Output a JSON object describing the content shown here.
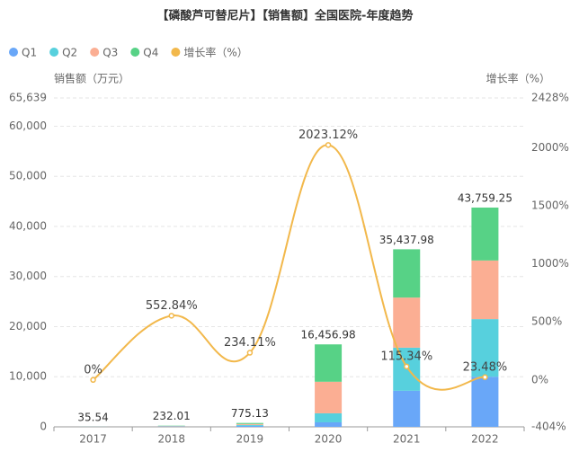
{
  "chart_data": {
    "type": "bar",
    "title": "【磷酸芦可替尼片】【销售额】全国医院-年度趋势",
    "y_label": "销售额（万元）",
    "y2_label": "增长率（%）",
    "categories": [
      "2017",
      "2018",
      "2019",
      "2020",
      "2021",
      "2022"
    ],
    "stacked": true,
    "series": [
      {
        "name": "Q1",
        "color": "#69a7f8",
        "values": [
          10,
          60,
          200,
          900,
          7200,
          10000
        ]
      },
      {
        "name": "Q2",
        "color": "#57d0dd",
        "values": [
          8,
          55,
          180,
          1800,
          8600,
          11500
        ]
      },
      {
        "name": "Q3",
        "color": "#fbae93",
        "values": [
          9,
          60,
          200,
          6300,
          10000,
          11700
        ]
      },
      {
        "name": "Q4",
        "color": "#57d286",
        "values": [
          8.54,
          57.01,
          195.13,
          7456.98,
          9637.98,
          10559.25
        ]
      },
      {
        "name": "增长率（%）",
        "type": "line",
        "axis": "y2",
        "color": "#f2b84b",
        "smooth": true,
        "values": [
          0,
          552.84,
          234.11,
          2023.12,
          115.34,
          23.48
        ],
        "value_labels": [
          "0%",
          "552.84%",
          "234.11%",
          "2023.12%",
          "115.34%",
          "23.48%"
        ]
      }
    ],
    "total_labels": [
      "35.54",
      "232.01",
      "775.13",
      "16,456.98",
      "35,437.98",
      "43,759.25"
    ],
    "ylim": [
      0,
      65639
    ],
    "yticks": [
      0,
      {
        "value": 10000,
        "label": "10,000"
      },
      {
        "value": 20000,
        "label": "20,000"
      },
      {
        "value": 30000,
        "label": "30,000"
      },
      {
        "value": 40000,
        "label": "40,000"
      },
      {
        "value": 50000,
        "label": "50,000"
      },
      {
        "value": 60000,
        "label": "60,000"
      },
      {
        "value": 65639,
        "label": "65,639"
      }
    ],
    "y2lim": [
      -404,
      2428
    ],
    "y2ticks": [
      {
        "value": -404,
        "label": "-404%"
      },
      {
        "value": 0,
        "label": "0%"
      },
      {
        "value": 500,
        "label": "500%"
      },
      {
        "value": 1000,
        "label": "1000%"
      },
      {
        "value": 1500,
        "label": "1500%"
      },
      {
        "value": 2000,
        "label": "2000%"
      },
      {
        "value": 2428,
        "label": "2428%"
      }
    ],
    "grid": true,
    "legend": "top-left"
  }
}
